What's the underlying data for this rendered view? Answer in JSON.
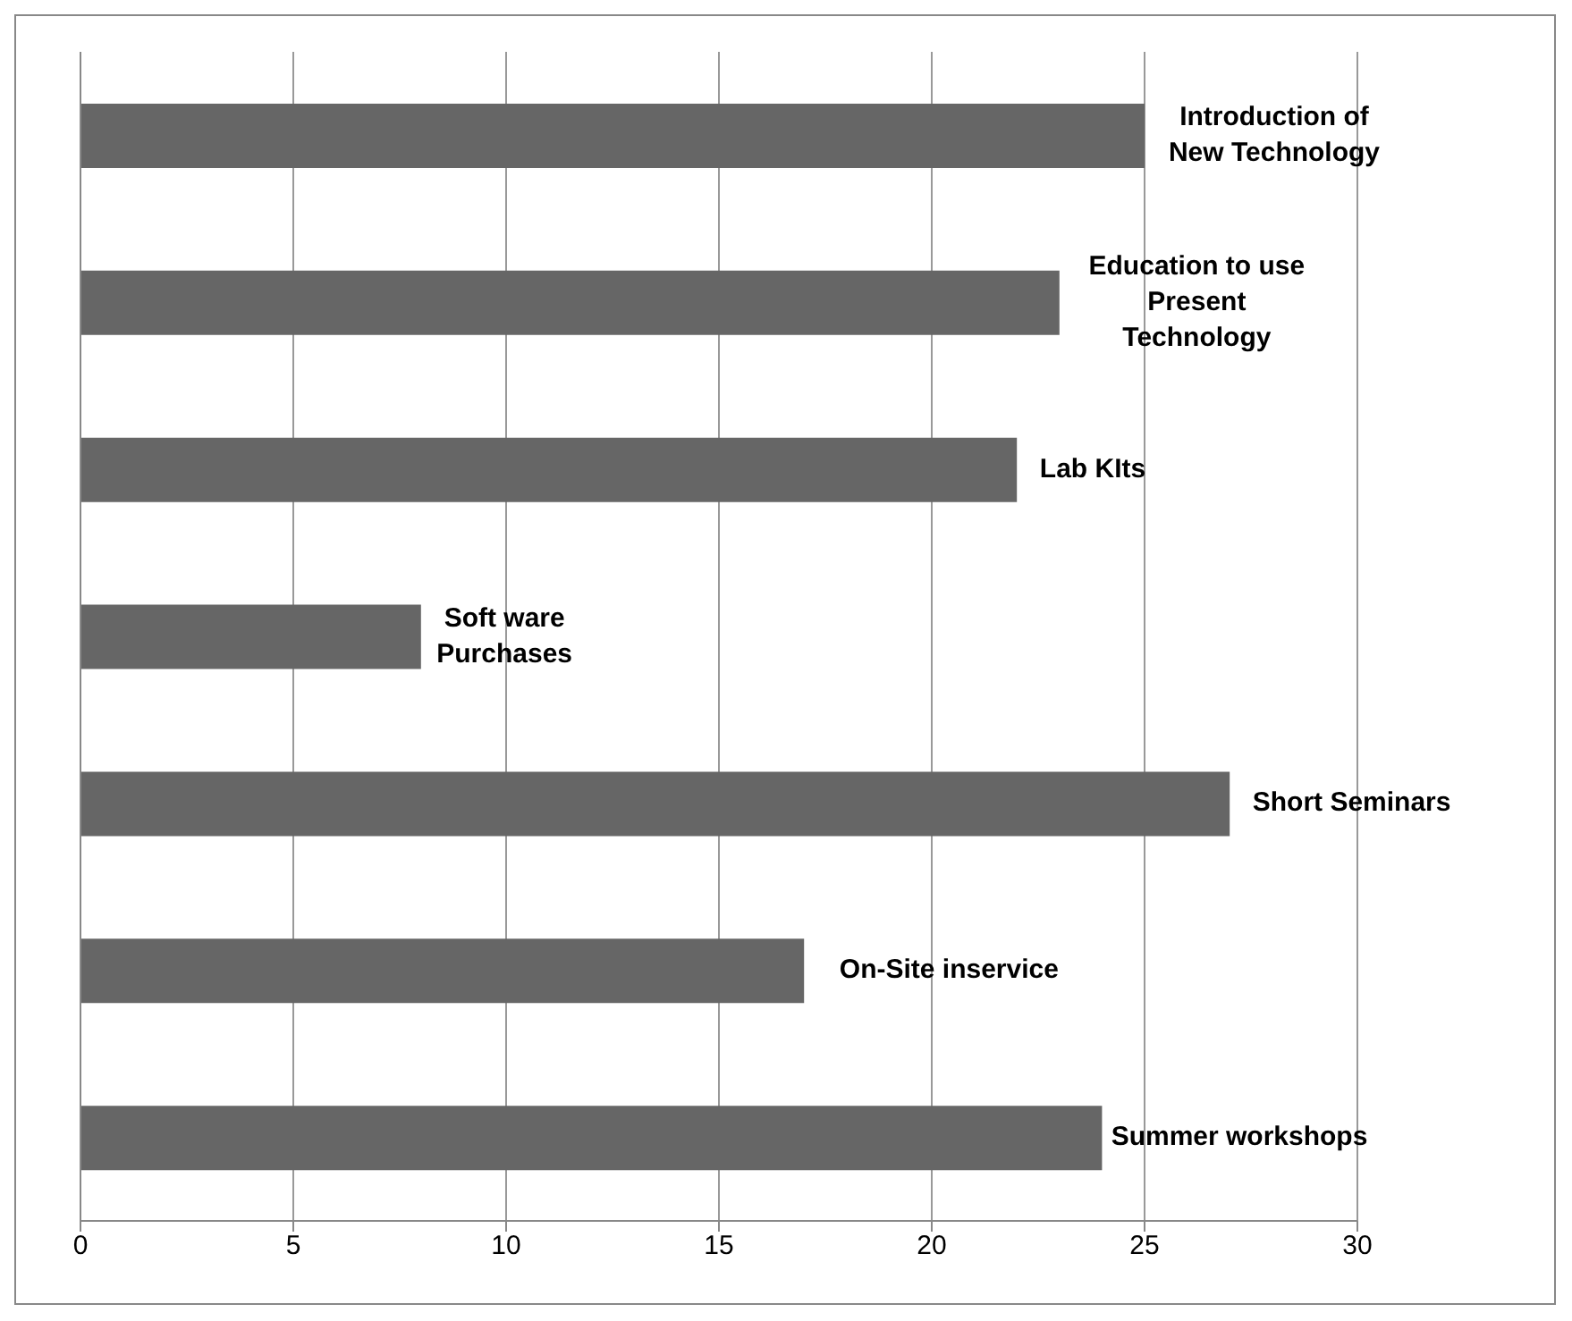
{
  "chart_data": {
    "type": "bar",
    "orientation": "horizontal",
    "categories": [
      "Introduction of New Technology",
      "Education to use Present Technology",
      "Lab KIts",
      "Soft ware Purchases",
      "Short Seminars",
      "On-Site inservice",
      "Summer workshops"
    ],
    "values": [
      25,
      23,
      22,
      8,
      27,
      17,
      24
    ],
    "color": "#666666",
    "xlim": [
      0,
      30
    ],
    "xticks": [
      0,
      5,
      10,
      15,
      20,
      25,
      30
    ],
    "grid": "x",
    "tick_labels": "x"
  }
}
